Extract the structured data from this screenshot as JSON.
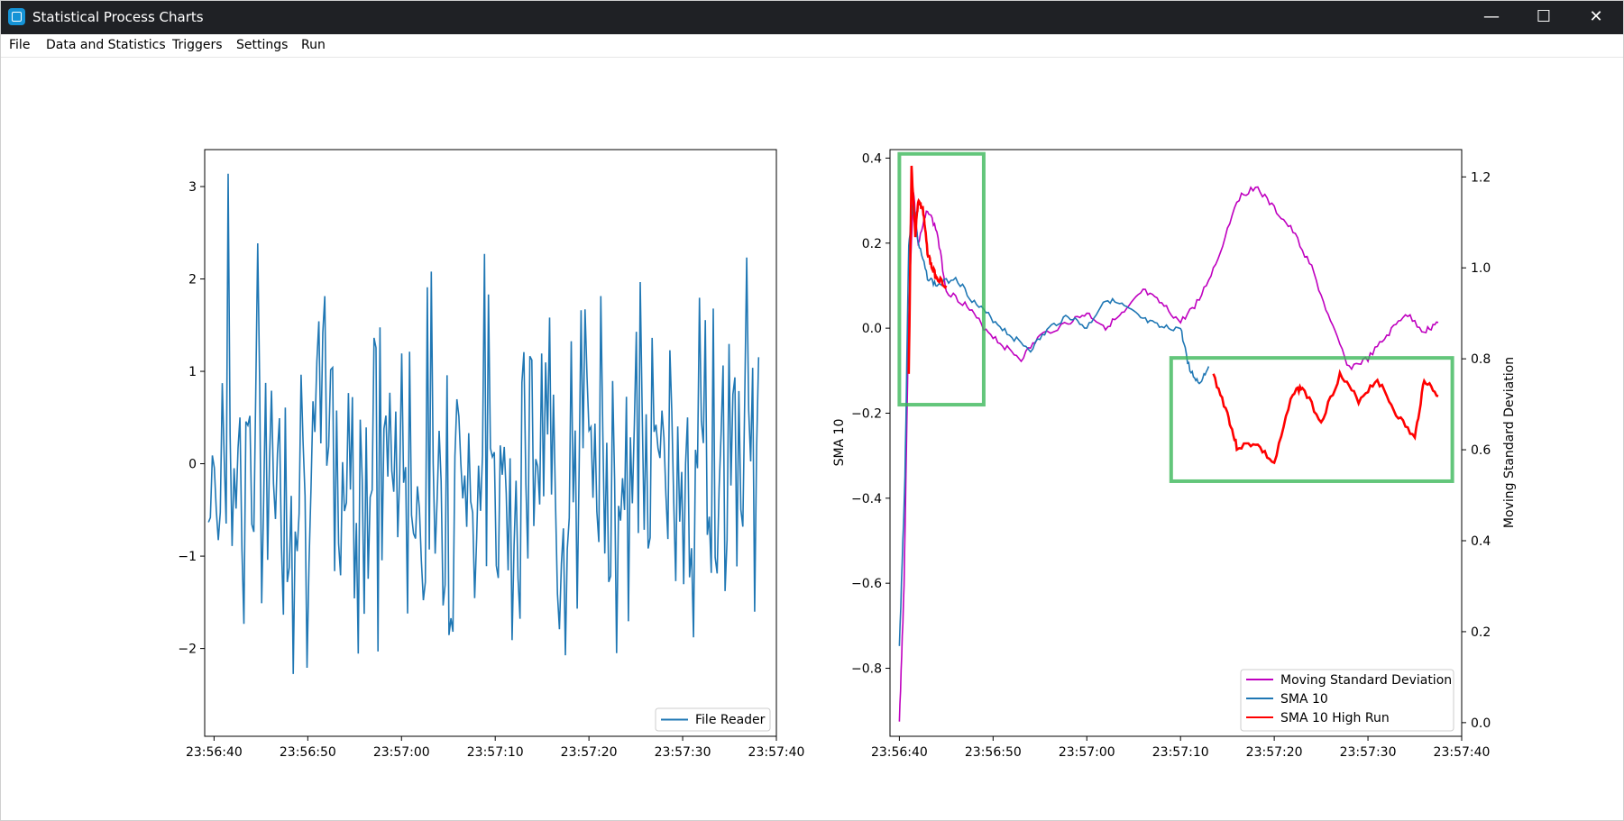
{
  "window": {
    "title": "Statistical Process Charts",
    "minimize_glyph": "—",
    "maximize_glyph": "☐",
    "close_glyph": "✕"
  },
  "menu": {
    "items": [
      "File",
      "Data and Statistics",
      "Triggers",
      "Settings",
      "Run"
    ]
  },
  "chart_data": [
    {
      "type": "line",
      "xlim": [
        "23:56:39",
        "23:57:40"
      ],
      "ylim": [
        -2.95,
        3.4
      ],
      "x_ticks": [
        "23:56:40",
        "23:56:50",
        "23:57:00",
        "23:57:10",
        "23:57:20",
        "23:57:30",
        "23:57:40"
      ],
      "y_ticks": [
        3,
        2,
        1,
        0,
        -1,
        -2
      ],
      "y_tick_labels": [
        "3",
        "2",
        "1",
        "0",
        "−1",
        "−2"
      ],
      "legend": {
        "placement": "lower-right",
        "entries": [
          "File Reader"
        ]
      },
      "series": [
        {
          "name": "File Reader",
          "color": "#1f77b4",
          "x_start": "23:56:39.4",
          "x_end": "23:57:38.1",
          "amplitude": 3.14,
          "points": 280
        }
      ]
    },
    {
      "type": "line",
      "xlim": [
        "23:56:39",
        "23:57:40"
      ],
      "ylim_left": [
        -0.96,
        0.42
      ],
      "ylim_right": [
        -0.03,
        1.26
      ],
      "ylabel": "SMA 10",
      "ylabel_right": "Moving Standard Deviation",
      "x_ticks": [
        "23:56:40",
        "23:56:50",
        "23:57:00",
        "23:57:10",
        "23:57:20",
        "23:57:30",
        "23:57:40"
      ],
      "y_ticks": [
        0.4,
        0.2,
        0.0,
        -0.2,
        -0.4,
        -0.6,
        -0.8
      ],
      "y_tick_labels": [
        "0.4",
        "0.2",
        "0.0",
        "−0.2",
        "−0.4",
        "−0.6",
        "−0.8"
      ],
      "y_ticks_right": [
        1.2,
        1.0,
        0.8,
        0.6,
        0.4,
        0.2,
        0.0
      ],
      "y_tick_labels_right": [
        "1.2",
        "1.0",
        "0.8",
        "0.6",
        "0.4",
        "0.2",
        "0.0"
      ],
      "legend": {
        "placement": "lower-right",
        "entries": [
          "Moving Standard Deviation",
          "SMA 10",
          "SMA 10 High Run"
        ]
      },
      "series": [
        {
          "name": "Moving Standard Deviation",
          "color": "#bf00bf",
          "axis": "right",
          "points": [
            [
              "23:56:40",
              0.0
            ],
            [
              "23:56:40.5",
              0.3
            ],
            [
              "23:56:41",
              0.9
            ],
            [
              "23:56:41.5",
              1.17
            ],
            [
              "23:56:42",
              1.05
            ],
            [
              "23:56:43",
              1.13
            ],
            [
              "23:56:44",
              1.08
            ],
            [
              "23:56:45",
              0.95
            ],
            [
              "23:56:47",
              0.92
            ],
            [
              "23:56:49",
              0.87
            ],
            [
              "23:56:51",
              0.83
            ],
            [
              "23:56:53",
              0.8
            ],
            [
              "23:56:55",
              0.85
            ],
            [
              "23:56:58",
              0.88
            ],
            [
              "23:57:00",
              0.9
            ],
            [
              "23:57:02",
              0.87
            ],
            [
              "23:57:04",
              0.9
            ],
            [
              "23:57:06",
              0.95
            ],
            [
              "23:57:08",
              0.92
            ],
            [
              "23:57:10",
              0.88
            ],
            [
              "23:57:12",
              0.93
            ],
            [
              "23:57:14",
              1.02
            ],
            [
              "23:57:16",
              1.15
            ],
            [
              "23:57:18",
              1.18
            ],
            [
              "23:57:20",
              1.13
            ],
            [
              "23:57:22",
              1.08
            ],
            [
              "23:57:24",
              1.0
            ],
            [
              "23:57:26",
              0.88
            ],
            [
              "23:57:28",
              0.78
            ],
            [
              "23:57:30",
              0.8
            ],
            [
              "23:57:32",
              0.85
            ],
            [
              "23:57:34",
              0.9
            ],
            [
              "23:57:36",
              0.86
            ],
            [
              "23:57:37.5",
              0.88
            ]
          ]
        },
        {
          "name": "SMA 10",
          "color": "#1f77b4",
          "axis": "left",
          "points": [
            [
              "23:56:40",
              -0.75
            ],
            [
              "23:56:40.6",
              -0.35
            ],
            [
              "23:56:41",
              0.2
            ],
            [
              "23:56:41.5",
              0.3
            ],
            [
              "23:56:42",
              0.2
            ],
            [
              "23:56:43",
              0.12
            ],
            [
              "23:56:44",
              0.1
            ],
            [
              "23:56:46",
              0.12
            ],
            [
              "23:56:48",
              0.06
            ],
            [
              "23:56:50",
              0.02
            ],
            [
              "23:56:52",
              -0.02
            ],
            [
              "23:56:54",
              -0.05
            ],
            [
              "23:56:56",
              0.0
            ],
            [
              "23:56:58",
              0.03
            ],
            [
              "23:57:00",
              0.0
            ],
            [
              "23:57:02",
              0.07
            ],
            [
              "23:57:04",
              0.05
            ],
            [
              "23:57:06",
              0.02
            ],
            [
              "23:57:08",
              0.0
            ],
            [
              "23:57:10",
              0.0
            ],
            [
              "23:57:11",
              -0.1
            ],
            [
              "23:57:12",
              -0.13
            ],
            [
              "23:57:13",
              -0.09
            ]
          ]
        },
        {
          "name": "SMA 10 High Run",
          "color": "#ff0000",
          "axis": "left",
          "segments": [
            [
              [
                "23:56:41",
                -0.11
              ],
              [
                "23:56:41.3",
                0.38
              ],
              [
                "23:56:41.7",
                0.22
              ],
              [
                "23:56:42",
                0.3
              ],
              [
                "23:56:42.5",
                0.28
              ],
              [
                "23:56:43",
                0.18
              ],
              [
                "23:56:43.5",
                0.14
              ],
              [
                "23:56:44",
                0.12
              ],
              [
                "23:56:45",
                0.1
              ]
            ],
            [
              [
                "23:57:13.5",
                -0.11
              ],
              [
                "23:57:15",
                -0.2
              ],
              [
                "23:57:16",
                -0.28
              ],
              [
                "23:57:18",
                -0.27
              ],
              [
                "23:57:20",
                -0.32
              ],
              [
                "23:57:22",
                -0.15
              ],
              [
                "23:57:23",
                -0.14
              ],
              [
                "23:57:25",
                -0.22
              ],
              [
                "23:57:27",
                -0.11
              ],
              [
                "23:57:29",
                -0.17
              ],
              [
                "23:57:31",
                -0.12
              ],
              [
                "23:57:33",
                -0.2
              ],
              [
                "23:57:35",
                -0.26
              ],
              [
                "23:57:36",
                -0.12
              ],
              [
                "23:57:37.5",
                -0.16
              ]
            ]
          ]
        }
      ],
      "highlight_boxes": [
        {
          "color": "#3cb85a",
          "x": [
            "23:56:40",
            "23:56:49"
          ],
          "y": [
            -0.18,
            0.41
          ]
        },
        {
          "color": "#3cb85a",
          "x": [
            "23:57:09",
            "23:57:39"
          ],
          "y": [
            -0.36,
            -0.07
          ]
        }
      ]
    }
  ]
}
